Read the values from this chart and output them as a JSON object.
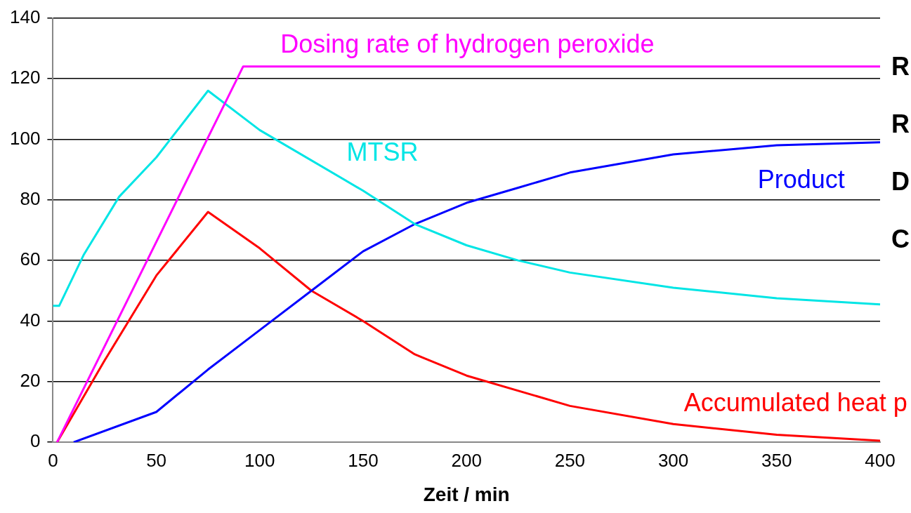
{
  "chart_data": {
    "type": "line",
    "xlabel": "Zeit / min",
    "xlim": [
      0,
      400
    ],
    "xticks": [
      0,
      50,
      100,
      150,
      200,
      250,
      300,
      350,
      400
    ],
    "ylim": [
      0,
      140
    ],
    "yticks": [
      0,
      20,
      40,
      60,
      80,
      100,
      120,
      140
    ],
    "grid": "y",
    "legend": false,
    "marker": "none",
    "line_style": "solid",
    "series": [
      {
        "name": "Dosing rate of hydrogen peroxide",
        "color": "#ff00ff",
        "x": [
          2,
          92,
          400
        ],
        "values": [
          0,
          124,
          124
        ]
      },
      {
        "name": "MTSR",
        "color": "#00e5e5",
        "x": [
          0,
          3,
          15,
          32,
          50,
          75,
          100,
          150,
          175,
          200,
          225,
          250,
          300,
          350,
          400
        ],
        "values": [
          45,
          45,
          62,
          81,
          94,
          116,
          103,
          83,
          72,
          65,
          60,
          56,
          51,
          47.5,
          45.5
        ]
      },
      {
        "name": "Product",
        "color": "#0000ff",
        "x": [
          10,
          50,
          75,
          100,
          125,
          150,
          175,
          200,
          225,
          250,
          300,
          350,
          400
        ],
        "values": [
          0,
          10,
          24,
          37,
          50,
          63,
          72,
          79,
          84,
          89,
          95,
          98,
          99
        ]
      },
      {
        "name": "Accumulated heat p",
        "color": "#ff0000",
        "x": [
          2,
          25,
          50,
          75,
          100,
          125,
          150,
          175,
          200,
          250,
          300,
          350,
          400
        ],
        "values": [
          0,
          27,
          55,
          76,
          64,
          50,
          40,
          29,
          22,
          12,
          6,
          2.5,
          0.5
        ]
      }
    ],
    "annotations": [
      "R",
      "R",
      "D",
      "C"
    ]
  }
}
